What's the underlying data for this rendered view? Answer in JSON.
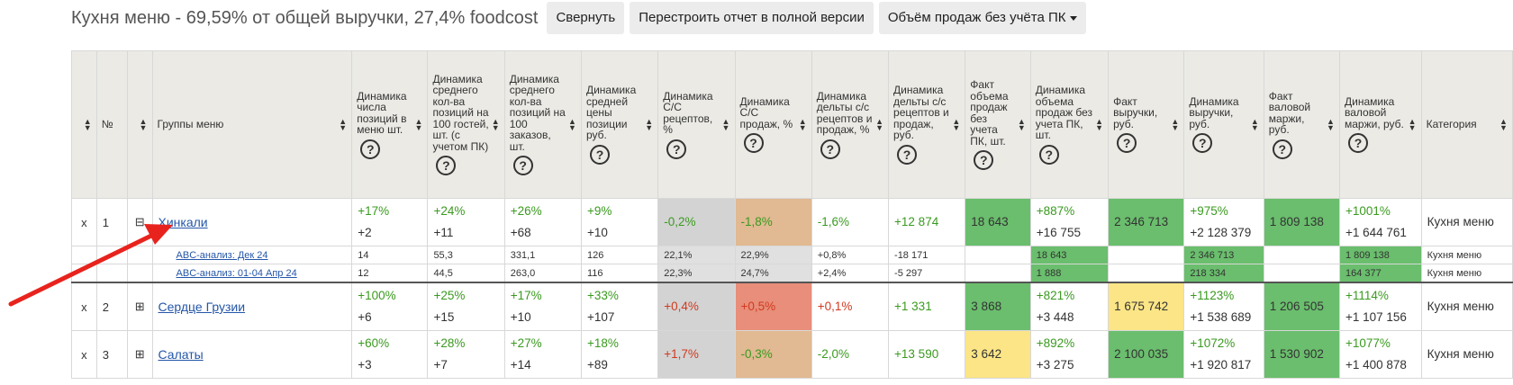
{
  "header": {
    "title": "Кухня меню - 69,59% от общей выручки, 27,4% foodcost",
    "buttons": {
      "collapse": "Свернуть",
      "rebuild": "Перестроить отчет в полной версии",
      "sales_volume": "Объём продаж без учёта ПК"
    }
  },
  "columns": {
    "num": "№",
    "group": "Группы меню",
    "c1": "Динамика числа позиций в меню шт.",
    "c2": "Динамика среднего кол-ва позиций на 100 гостей, шт. (с учетом ПК)",
    "c3": "Динамика среднего кол-ва позиций на 100 заказов, шт.",
    "c4": "Динамика средней цены позиции руб.",
    "c5": "Динамика С/С рецептов, %",
    "c6": "Динамика С/С продаж, %",
    "c7": "Динамика дельты с/с рецептов и продаж, %",
    "c8": "Динамика дельты с/с рецептов и продаж, руб.",
    "c9": "Факт объема продаж без учета ПК, шт.",
    "c10": "Динамика объема продаж без учета ПК, шт.",
    "c11": "Факт выручки, руб.",
    "c12": "Динамика выручки, руб.",
    "c13": "Факт валовой маржи, руб.",
    "c14": "Динамика валовой маржи, руб.",
    "c15": "Категория",
    "help": "?"
  },
  "rows": [
    {
      "x": "x",
      "num": "1",
      "toggle": "⊟",
      "name": "Хинкали",
      "c1a": "+17%",
      "c1b": "+2",
      "c2a": "+24%",
      "c2b": "+11",
      "c3a": "+26%",
      "c3b": "+68",
      "c4a": "+9%",
      "c4b": "+10",
      "c5": "-0,2%",
      "c6": "-1,8%",
      "c7": "-1,6%",
      "c8": "+12 874",
      "c9": "18 643",
      "c10a": "+887%",
      "c10b": "+16 755",
      "c11": "2 346 713",
      "c12a": "+975%",
      "c12b": "+2 128 379",
      "c13": "1 809 138",
      "c14a": "+1001%",
      "c14b": "+1 644 761",
      "cat": "Кухня меню"
    },
    {
      "x": "x",
      "num": "2",
      "toggle": "⊞",
      "name": "Сердце Грузии",
      "c1a": "+100%",
      "c1b": "+6",
      "c2a": "+25%",
      "c2b": "+15",
      "c3a": "+17%",
      "c3b": "+10",
      "c4a": "+33%",
      "c4b": "+107",
      "c5": "+0,4%",
      "c6": "+0,5%",
      "c7": "+0,1%",
      "c8": "+1 331",
      "c9": "3 868",
      "c10a": "+821%",
      "c10b": "+3 448",
      "c11": "1 675 742",
      "c12a": "+1123%",
      "c12b": "+1 538 689",
      "c13": "1 206 505",
      "c14a": "+1114%",
      "c14b": "+1 107 156",
      "cat": "Кухня меню"
    },
    {
      "x": "x",
      "num": "3",
      "toggle": "⊞",
      "name": "Салаты",
      "c1a": "+60%",
      "c1b": "+3",
      "c2a": "+28%",
      "c2b": "+7",
      "c3a": "+27%",
      "c3b": "+14",
      "c4a": "+18%",
      "c4b": "+89",
      "c5": "+1,7%",
      "c6": "-0,3%",
      "c7": "-2,0%",
      "c8": "+13 590",
      "c9": "3 642",
      "c10a": "+892%",
      "c10b": "+3 275",
      "c11": "2 100 035",
      "c12a": "+1072%",
      "c12b": "+1 920 817",
      "c13": "1 530 902",
      "c14a": "+1077%",
      "c14b": "+1 400 878",
      "cat": "Кухня меню"
    }
  ],
  "subrows": [
    {
      "name": "ABC-анализ: Дек 24",
      "c1": "14",
      "c2": "55,3",
      "c3": "331,1",
      "c4": "126",
      "c5": "22,1%",
      "c6": "22,9%",
      "c7": "+0,8%",
      "c8": "-18 171",
      "c9": "",
      "c10": "18 643",
      "c11": "",
      "c12": "2 346 713",
      "c13": "",
      "c14": "1 809 138",
      "cat": "Кухня меню"
    },
    {
      "name": "ABC-анализ: 01-04 Апр 24",
      "c1": "12",
      "c2": "44,5",
      "c3": "263,0",
      "c4": "116",
      "c5": "22,3%",
      "c6": "24,7%",
      "c7": "+2,4%",
      "c8": "-5 297",
      "c9": "",
      "c10": "1 888",
      "c11": "",
      "c12": "218 334",
      "c13": "",
      "c14": "164 377",
      "cat": "Кухня меню"
    }
  ],
  "colors": {
    "green_text": "#3a9a1f",
    "red_text": "#d03a1f",
    "green_fill": "#6abe6d",
    "yellow_fill": "#fbe586",
    "arrow": "#e8231d"
  }
}
